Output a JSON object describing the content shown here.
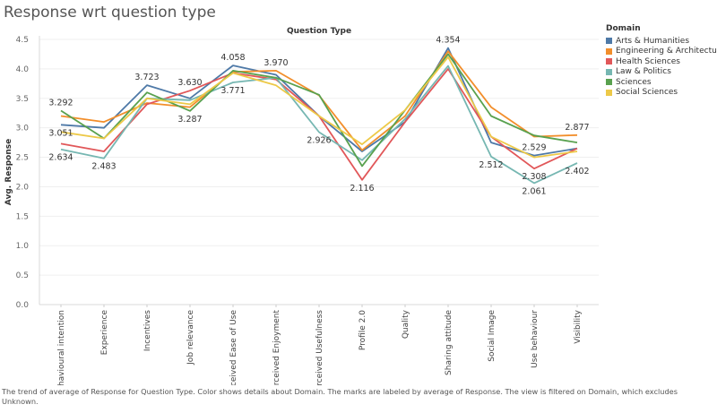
{
  "title": "Response wrt question type",
  "caption": "The trend of average of Response for Question Type.  Color shows details about Domain.  The marks are labeled by average of Response. The view is filtered on Domain, which excludes Unknown.",
  "chart_data": {
    "type": "line",
    "header": "Question Type",
    "ylabel": "Avg. Response",
    "ylim": [
      0,
      4.5
    ],
    "yticks": [
      "0.0",
      "0.5",
      "1.0",
      "1.5",
      "2.0",
      "2.5",
      "3.0",
      "3.5",
      "4.0",
      "4.5"
    ],
    "grid": true,
    "legend_title": "Domain",
    "legend_position": "right",
    "categories": [
      "Behavioural intention",
      "Experience",
      "Incentives",
      "Job relevance",
      "Perceived Ease of Use",
      "Perceived Enjoyment",
      "Perceived Usefulness",
      "Profile 2.0",
      "Quality",
      "Sharing attitude",
      "Social Image",
      "Use behaviour",
      "Visibility"
    ],
    "series": [
      {
        "name": "Arts & Humanities",
        "color": "#4e79a7",
        "values": [
          3.051,
          3.0,
          3.723,
          3.5,
          4.058,
          3.9,
          3.2,
          2.6,
          3.1,
          4.354,
          2.75,
          2.529,
          2.65
        ]
      },
      {
        "name": "Engineering & Architecture",
        "color": "#f28e2b",
        "values": [
          3.2,
          3.1,
          3.42,
          3.35,
          3.95,
          3.97,
          3.55,
          2.62,
          3.2,
          4.3,
          3.35,
          2.85,
          2.877
        ]
      },
      {
        "name": "Health Sciences",
        "color": "#e15759",
        "values": [
          2.73,
          2.6,
          3.4,
          3.63,
          3.93,
          3.82,
          3.2,
          2.116,
          3.1,
          4.0,
          2.85,
          2.308,
          2.65
        ]
      },
      {
        "name": "Law & Politics",
        "color": "#76b7b2",
        "values": [
          2.634,
          2.483,
          3.5,
          3.47,
          3.771,
          3.85,
          2.926,
          2.45,
          3.15,
          4.05,
          2.512,
          2.061,
          2.402
        ]
      },
      {
        "name": "Sciences",
        "color": "#59a14f",
        "values": [
          3.292,
          2.82,
          3.6,
          3.287,
          3.97,
          3.85,
          3.56,
          2.35,
          3.3,
          4.25,
          3.2,
          2.87,
          2.75
        ]
      },
      {
        "name": "Social Sciences",
        "color": "#edc948",
        "values": [
          2.93,
          2.82,
          3.5,
          3.4,
          3.93,
          3.72,
          3.2,
          2.72,
          3.3,
          4.2,
          2.85,
          2.5,
          2.6
        ]
      }
    ],
    "data_labels": [
      {
        "series": "Sciences",
        "category": "Behavioural intention",
        "text": "3.292",
        "pos": "above"
      },
      {
        "series": "Arts & Humanities",
        "category": "Behavioural intention",
        "text": "3.051",
        "pos": "below"
      },
      {
        "series": "Law & Politics",
        "category": "Behavioural intention",
        "text": "2.634",
        "pos": "below"
      },
      {
        "series": "Law & Politics",
        "category": "Experience",
        "text": "2.483",
        "pos": "below"
      },
      {
        "series": "Arts & Humanities",
        "category": "Incentives",
        "text": "3.723",
        "pos": "above"
      },
      {
        "series": "Health Sciences",
        "category": "Job relevance",
        "text": "3.630",
        "pos": "above"
      },
      {
        "series": "Sciences",
        "category": "Job relevance",
        "text": "3.287",
        "pos": "below"
      },
      {
        "series": "Arts & Humanities",
        "category": "Perceived Ease of Use",
        "text": "4.058",
        "pos": "above"
      },
      {
        "series": "Law & Politics",
        "category": "Perceived Ease of Use",
        "text": "3.771",
        "pos": "below"
      },
      {
        "series": "Engineering & Architecture",
        "category": "Perceived Enjoyment",
        "text": "3.970",
        "pos": "above"
      },
      {
        "series": "Law & Politics",
        "category": "Perceived Usefulness",
        "text": "2.926",
        "pos": "below"
      },
      {
        "series": "Health Sciences",
        "category": "Profile 2.0",
        "text": "2.116",
        "pos": "below"
      },
      {
        "series": "Arts & Humanities",
        "category": "Sharing attitude",
        "text": "4.354",
        "pos": "above"
      },
      {
        "series": "Law & Politics",
        "category": "Social Image",
        "text": "2.512",
        "pos": "below"
      },
      {
        "series": "Arts & Humanities",
        "category": "Use behaviour",
        "text": "2.529",
        "pos": "above"
      },
      {
        "series": "Health Sciences",
        "category": "Use behaviour",
        "text": "2.308",
        "pos": "below"
      },
      {
        "series": "Law & Politics",
        "category": "Use behaviour",
        "text": "2.061",
        "pos": "below"
      },
      {
        "series": "Engineering & Architecture",
        "category": "Visibility",
        "text": "2.877",
        "pos": "above"
      },
      {
        "series": "Law & Politics",
        "category": "Visibility",
        "text": "2.402",
        "pos": "below"
      }
    ]
  }
}
